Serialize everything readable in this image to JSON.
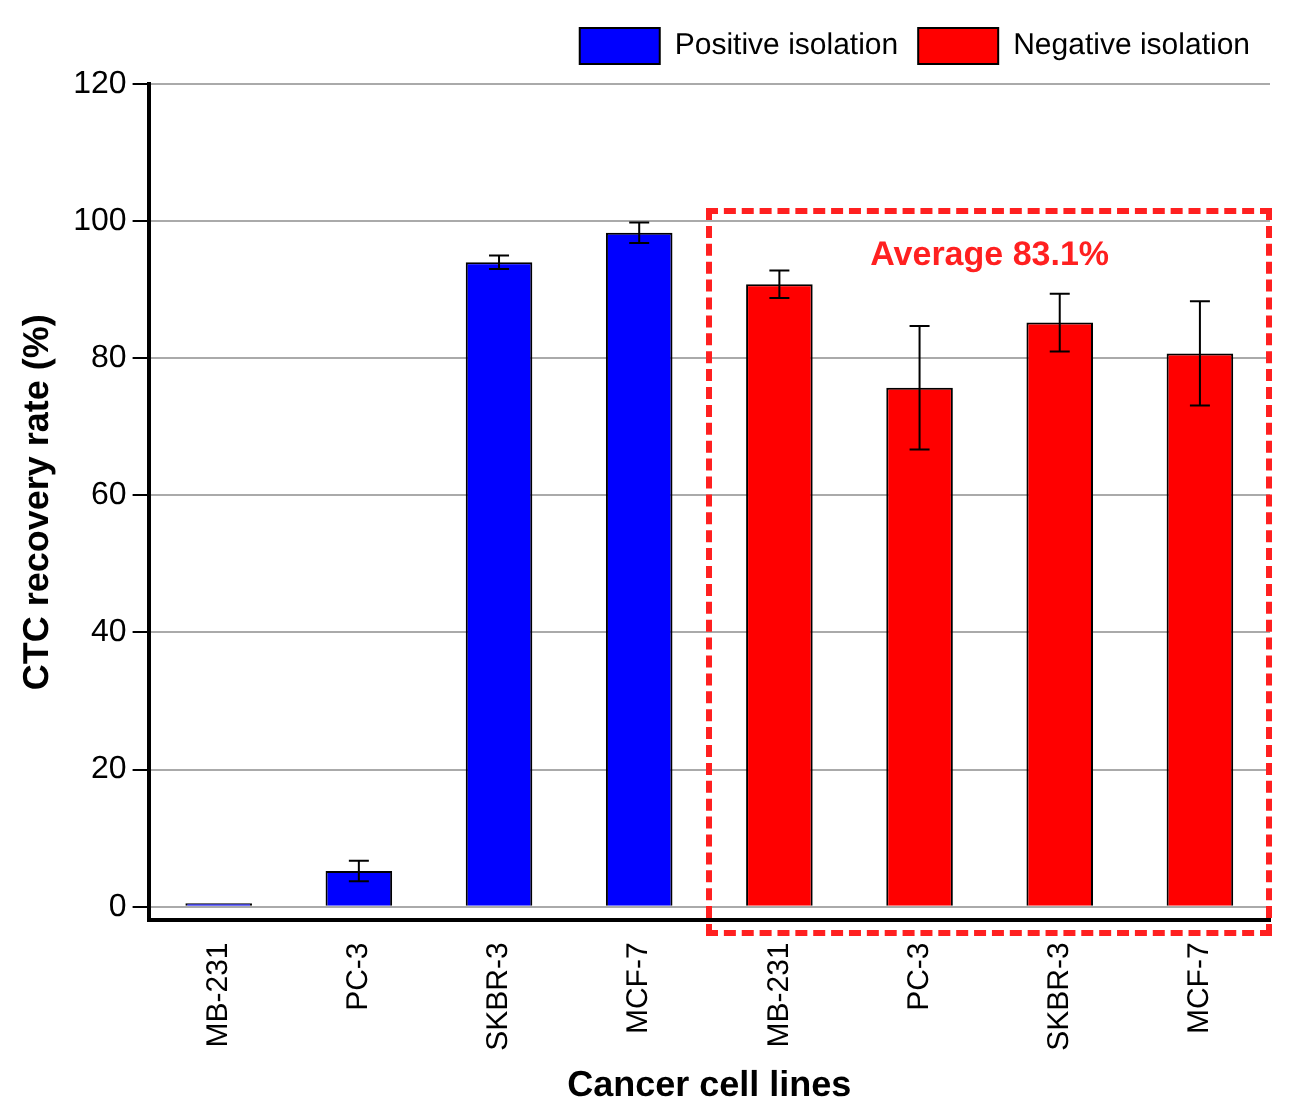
{
  "chart_data": {
    "type": "bar",
    "xlabel": "Cancer cell lines",
    "ylabel": "CTC recovery rate (%)",
    "categories": [
      "MB-231",
      "PC-3",
      "SKBR-3",
      "MCF-7",
      "MB-231",
      "PC-3",
      "SKBR-3",
      "MCF-7"
    ],
    "series": [
      {
        "name": "Positive isolation",
        "color": "#0000ff",
        "values": [
          0.5,
          5.2,
          94,
          98.3,
          null,
          null,
          null,
          null
        ],
        "errors": [
          null,
          1.5,
          1,
          1.5,
          null,
          null,
          null,
          null
        ]
      },
      {
        "name": "Negative isolation",
        "color": "#ff0000",
        "values": [
          null,
          null,
          null,
          null,
          90.8,
          75.7,
          85.2,
          80.7
        ],
        "errors": [
          null,
          null,
          null,
          null,
          2,
          9,
          4.2,
          7.6
        ]
      }
    ],
    "annotations": [
      "Average 83.1%"
    ],
    "ylim": [
      -2,
      120
    ],
    "yticks": [
      0,
      20,
      40,
      60,
      80,
      100,
      120
    ],
    "grid": "y",
    "legend": "top right"
  }
}
